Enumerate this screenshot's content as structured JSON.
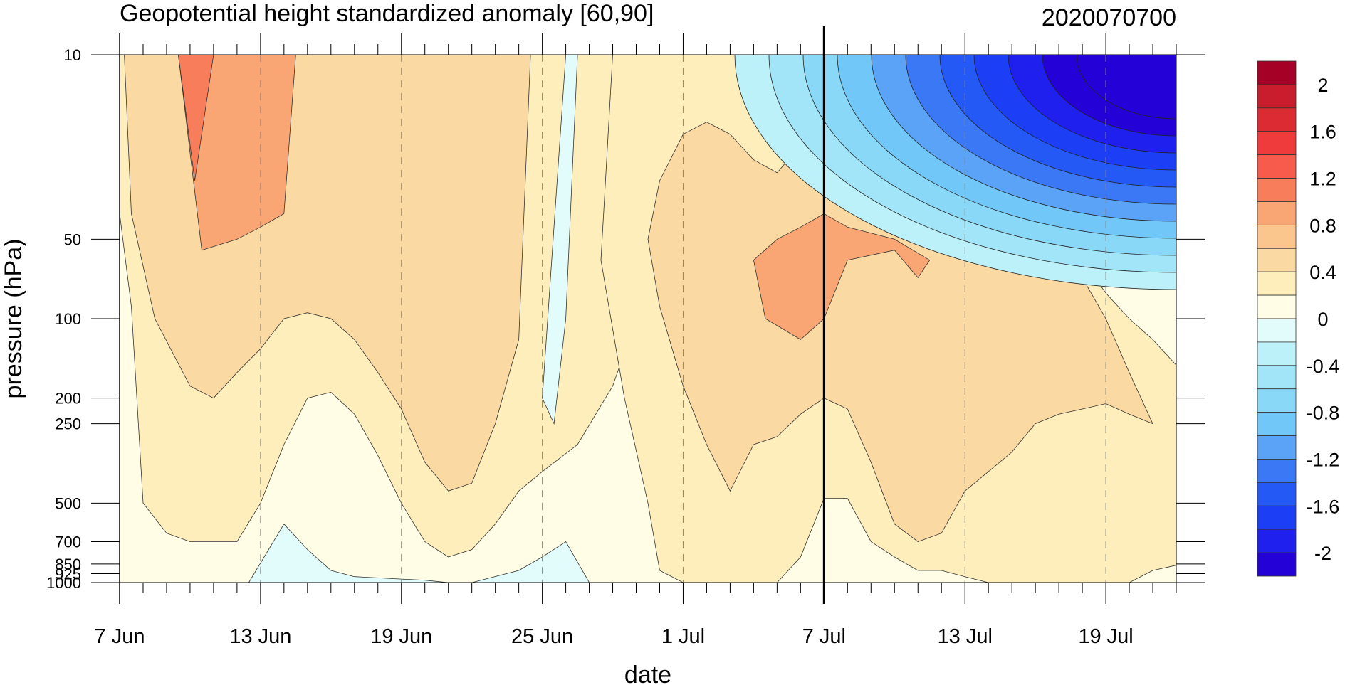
{
  "chart_data": {
    "type": "heatmap",
    "title": "Geopotential height standardized anomaly [60,90]",
    "subtitle": "2020070700",
    "xlabel": "date",
    "ylabel": "pressure (hPa)",
    "x_tick_labels": [
      "7 Jun",
      "13 Jun",
      "19 Jun",
      "25 Jun",
      "1 Jul",
      "7 Jul",
      "13 Jul",
      "19 Jul"
    ],
    "x_tick_day_index": [
      0,
      6,
      12,
      18,
      24,
      30,
      36,
      42
    ],
    "x_range_days": [
      0,
      45
    ],
    "y_ticks": [
      10,
      50,
      100,
      200,
      250,
      500,
      700,
      850,
      925,
      1000
    ],
    "y_tick_labels": [
      "10",
      "50",
      "100",
      "200",
      "250",
      "500",
      "700",
      "850",
      "925",
      "1000"
    ],
    "y_range": [
      10,
      1000
    ],
    "y_scale": "log-pressure (reversed)",
    "vertical_line_day": 30,
    "colorbar": {
      "levels": [
        -2.2,
        -2.0,
        -1.8,
        -1.6,
        -1.4,
        -1.2,
        -1.0,
        -0.8,
        -0.6,
        -0.4,
        -0.2,
        0,
        0.2,
        0.4,
        0.6,
        0.8,
        1.0,
        1.2,
        1.4,
        1.6,
        1.8,
        2.0,
        2.2
      ],
      "labels": [
        "2",
        "1.6",
        "1.2",
        "0.8",
        "0.4",
        "0",
        "-0.4",
        "-0.8",
        "-1.2",
        "-1.6",
        "-2"
      ],
      "colors": [
        "#2401d6",
        "#1f1fee",
        "#1c3ff5",
        "#2559f6",
        "#3b78f6",
        "#5aa3f7",
        "#71c8f8",
        "#8ad8f8",
        "#a3e5f8",
        "#bdf1f9",
        "#e2fbfb",
        "#fffde6",
        "#fdeebb",
        "#fbd9a3",
        "#fbc68e",
        "#f9a674",
        "#f87d5a",
        "#f65b4c",
        "#ef3b3c",
        "#dd2b34",
        "#c91c2c",
        "#a50026"
      ]
    },
    "grid": "dashed vertical lines at date ticks",
    "regions": [
      {
        "kind": "band",
        "level": 0.2,
        "color": "#fdeebb",
        "x": [
          0,
          0,
          0.5,
          1,
          2,
          3,
          5,
          6,
          7,
          8,
          9,
          10,
          11,
          12,
          13,
          14,
          15,
          16,
          17,
          18,
          19.5,
          21,
          22,
          23,
          23.5,
          23.2,
          21.5,
          19.5,
          18,
          17,
          16,
          15,
          14,
          13,
          12,
          11,
          10,
          9,
          8,
          7,
          6,
          5,
          4,
          3,
          2,
          1,
          0
        ],
        "y": [
          10,
          40,
          90,
          500,
          650,
          700,
          700,
          500,
          300,
          200,
          190,
          230,
          330,
          500,
          700,
          800,
          750,
          600,
          450,
          380,
          300,
          180,
          100,
          50,
          10,
          10,
          10,
          10,
          10,
          10,
          10,
          10,
          10,
          10,
          10,
          10,
          10,
          10,
          10,
          10,
          10,
          10,
          10,
          10,
          10,
          10,
          10
        ]
      },
      {
        "kind": "band",
        "level": 0.2,
        "color": "#fdeebb",
        "x": [
          21,
          20.5,
          21.5,
          22.5,
          23,
          24,
          25,
          26,
          27,
          28,
          29,
          30,
          31,
          32,
          33,
          34,
          35,
          36,
          37,
          38,
          39,
          40,
          41,
          42,
          43,
          44,
          45,
          45,
          44,
          43,
          42,
          41,
          40,
          39,
          38,
          37,
          36,
          35,
          34,
          33,
          32,
          31,
          30,
          29,
          28,
          27,
          26,
          25,
          24,
          23,
          22
        ],
        "y": [
          10,
          60,
          200,
          500,
          900,
          1000,
          1000,
          1000,
          1000,
          1000,
          800,
          480,
          480,
          700,
          800,
          900,
          900,
          950,
          1000,
          1000,
          1000,
          1000,
          1000,
          1000,
          1000,
          900,
          860,
          150,
          120,
          100,
          80,
          60,
          45,
          35,
          28,
          22,
          18,
          14,
          12,
          11,
          10,
          10,
          10,
          10,
          10,
          10,
          10,
          10,
          10,
          10,
          10
        ]
      },
      {
        "kind": "band",
        "level": 0.6,
        "color": "#fbd9a3",
        "x": [
          0.2,
          0.5,
          1.5,
          3,
          4,
          5,
          6,
          7,
          8,
          9,
          10,
          11,
          12,
          13,
          14,
          15,
          16,
          17,
          17.5,
          16.5,
          15,
          13,
          11,
          9,
          7,
          5,
          3,
          1
        ],
        "y": [
          10,
          40,
          100,
          180,
          200,
          160,
          130,
          100,
          95,
          100,
          120,
          160,
          220,
          350,
          450,
          420,
          250,
          120,
          10,
          10,
          10,
          10,
          10,
          10,
          10,
          10,
          10,
          10
        ]
      },
      {
        "kind": "band",
        "level": 0.6,
        "color": "#fbd9a3",
        "x": [
          22.5,
          23,
          24,
          25,
          26,
          27,
          28,
          29,
          30,
          31,
          32,
          33,
          34,
          35,
          36,
          37,
          38,
          39,
          40,
          41,
          42,
          43,
          44,
          43,
          42,
          41,
          40,
          39,
          38,
          37,
          36,
          35,
          34,
          33,
          32,
          31,
          30,
          29,
          28,
          27,
          26,
          25,
          24,
          23
        ],
        "y": [
          50,
          90,
          180,
          300,
          450,
          300,
          280,
          230,
          200,
          220,
          350,
          600,
          700,
          650,
          450,
          380,
          320,
          250,
          230,
          220,
          210,
          230,
          250,
          160,
          100,
          70,
          55,
          48,
          42,
          35,
          28,
          22,
          18,
          15,
          14,
          15,
          18,
          22,
          28,
          25,
          20,
          18,
          20,
          30
        ]
      },
      {
        "kind": "band",
        "level": 1.0,
        "color": "#f9a674",
        "x": [
          2.5,
          3.5,
          5,
          6,
          7,
          7.5,
          7,
          6,
          5,
          4,
          3,
          2
        ],
        "y": [
          10,
          55,
          50,
          45,
          40,
          10,
          10,
          10,
          10,
          10,
          10,
          10
        ]
      },
      {
        "kind": "band",
        "level": 1.0,
        "color": "#f9a674",
        "x": [
          27,
          27.5,
          29,
          30,
          31,
          33,
          34,
          34.5,
          33,
          31,
          30,
          29,
          28
        ],
        "y": [
          60,
          100,
          120,
          100,
          60,
          55,
          70,
          60,
          50,
          45,
          40,
          45,
          50
        ]
      },
      {
        "kind": "band",
        "level": 1.2,
        "color": "#f87d5a",
        "x": [
          2.5,
          3.2,
          4.0,
          3.8
        ],
        "y": [
          10,
          30,
          10,
          10
        ]
      },
      {
        "kind": "band",
        "level": -0.2,
        "color": "#e2fbfb",
        "x": [
          18,
          18.5,
          19,
          19.5,
          19
        ],
        "y": [
          200,
          250,
          100,
          10,
          10
        ]
      },
      {
        "kind": "band",
        "level": -0.2,
        "color": "#e2fbfb",
        "x": [
          5.5,
          7,
          8,
          9,
          10,
          11,
          12,
          13,
          14,
          15,
          17,
          18,
          19,
          20
        ],
        "y": [
          1000,
          600,
          750,
          900,
          950,
          960,
          970,
          980,
          1000,
          1000,
          900,
          800,
          700,
          1000
        ]
      },
      {
        "kind": "cold_corner",
        "levels": [
          -0.2,
          -0.4,
          -0.6,
          -0.8,
          -1.0,
          -1.2,
          -1.4,
          -1.6,
          -1.8,
          -2.0,
          -2.2
        ],
        "corner_day": 45,
        "corner_pressure": 10
      }
    ]
  }
}
